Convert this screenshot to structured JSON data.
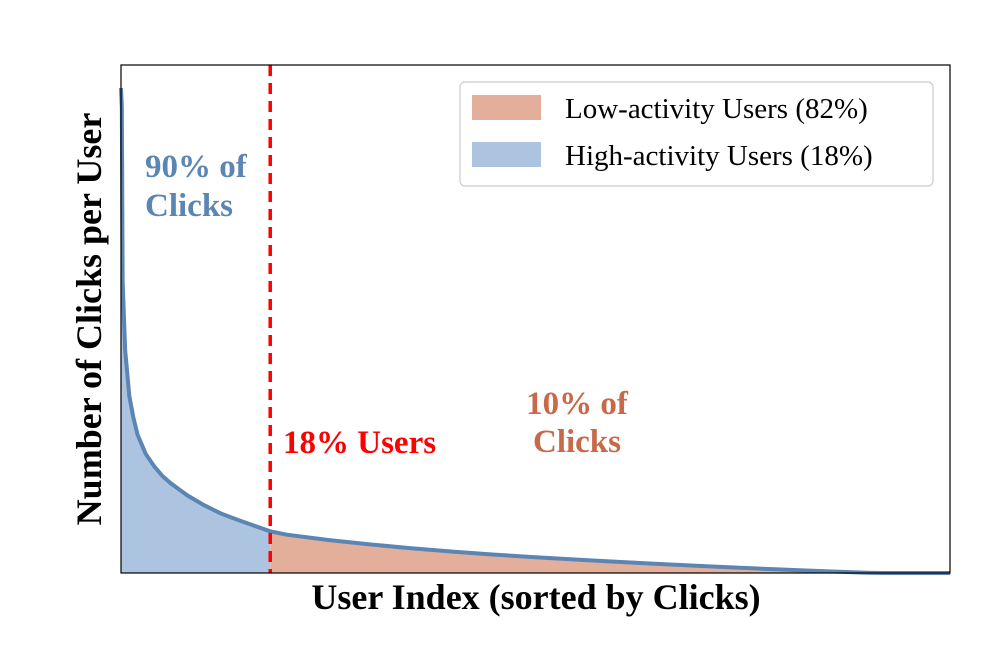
{
  "chart_data": {
    "type": "area",
    "xlabel": "User Index (sorted by Clicks)",
    "ylabel": "Number of Clicks per User",
    "x_range": [
      0,
      100
    ],
    "y_range": [
      0,
      100
    ],
    "split_at": 18,
    "curve": {
      "x": [
        0,
        0.1,
        0.2,
        0.5,
        1,
        1.5,
        2,
        3,
        4,
        5,
        6,
        8,
        10,
        12,
        14,
        16,
        18,
        20,
        25,
        30,
        35,
        40,
        45,
        50,
        55,
        60,
        65,
        70,
        75,
        80,
        85,
        90,
        92,
        95,
        100
      ],
      "y": [
        100,
        96,
        60,
        46,
        36.5,
        32,
        28.5,
        24.5,
        22,
        20,
        18.5,
        16,
        14,
        12.3,
        11,
        9.8,
        8.6,
        7.9,
        6.8,
        5.9,
        5.1,
        4.4,
        3.8,
        3.25,
        2.75,
        2.3,
        1.85,
        1.45,
        1.05,
        0.7,
        0.35,
        0.05,
        0,
        0,
        0
      ]
    },
    "series": [
      {
        "name": "Low-activity Users (82%)",
        "color": "#e3af9b"
      },
      {
        "name": "High-activity Users (18%)",
        "color": "#adc4e0"
      }
    ],
    "line_color": "#5b85b3",
    "split_line_color": "#ff0000",
    "legend_position": "top-right",
    "annotations": {
      "high_line1": "90% of",
      "high_line2": "Clicks",
      "high_color": "#5b85b3",
      "split_label": "18% Users",
      "split_color": "#ff0000",
      "low_line1": "10% of",
      "low_line2": "Clicks",
      "low_color": "#c8694a"
    },
    "grid": false,
    "tick_labels": false
  }
}
